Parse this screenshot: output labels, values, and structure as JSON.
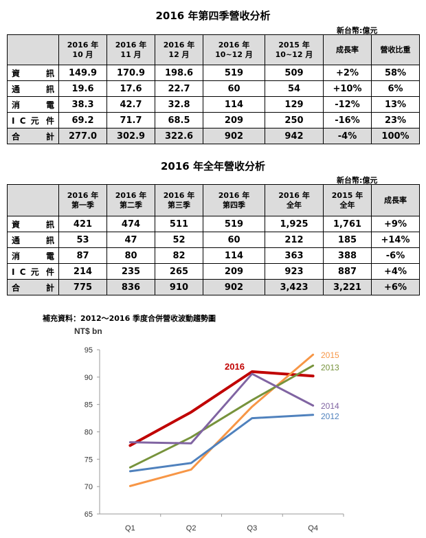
{
  "q4_title": "2016 年第四季營收分析",
  "unit_label": "新台幣:億元",
  "q4_table": {
    "headers": [
      "",
      "2016 年\n10 月",
      "2016 年\n11 月",
      "2016 年\n12 月",
      "2016 年\n10~12 月",
      "2015 年\n10~12 月",
      "成長率",
      "營收比重"
    ],
    "rows": [
      [
        "資 訊",
        "149.9",
        "170.9",
        "198.6",
        "519",
        "509",
        "+2%",
        "58%"
      ],
      [
        "通 訊",
        "19.6",
        "17.6",
        "22.7",
        "60",
        "54",
        "+10%",
        "6%"
      ],
      [
        "消 電",
        "38.3",
        "42.7",
        "32.8",
        "114",
        "129",
        "-12%",
        "13%"
      ],
      [
        "I C 元 件",
        "69.2",
        "71.7",
        "68.5",
        "209",
        "250",
        "-16%",
        "23%"
      ]
    ],
    "total": [
      "合 計",
      "277.0",
      "302.9",
      "322.6",
      "902",
      "942",
      "-4%",
      "100%"
    ]
  },
  "year_title": "2016 年全年營收分析",
  "year_table": {
    "headers": [
      "",
      "2016 年\n第一季",
      "2016 年\n第二季",
      "2016 年\n第三季",
      "2016 年\n第四季",
      "2016 年\n全年",
      "2015 年\n全年",
      "成長率"
    ],
    "rows": [
      [
        "資 訊",
        "421",
        "474",
        "511",
        "519",
        "1,925",
        "1,761",
        "+9%"
      ],
      [
        "通 訊",
        "53",
        "47",
        "52",
        "60",
        "212",
        "185",
        "+14%"
      ],
      [
        "消 電",
        "87",
        "80",
        "82",
        "114",
        "363",
        "388",
        "-6%"
      ],
      [
        "I C 元 件",
        "214",
        "235",
        "265",
        "209",
        "923",
        "887",
        "+4%"
      ]
    ],
    "total": [
      "合 計",
      "775",
      "836",
      "910",
      "902",
      "3,423",
      "3,221",
      "+6%"
    ]
  },
  "note": "補充資料：2012～2016 季度合併營收波動趨勢圖",
  "chart_data": {
    "type": "line",
    "ylabel": "NT$ bn",
    "ylim": [
      65,
      95
    ],
    "yticks": [
      "65",
      "70",
      "75",
      "80",
      "85",
      "90",
      "95"
    ],
    "categories": [
      "Q1",
      "Q2",
      "Q3",
      "Q4"
    ],
    "grid": false,
    "series": [
      {
        "name": "2016",
        "color": "#c00000",
        "values": [
          77.5,
          83.6,
          91.0,
          90.2
        ]
      },
      {
        "name": "2015",
        "color": "#f79646",
        "values": [
          70.1,
          73.1,
          84.6,
          94.1
        ]
      },
      {
        "name": "2013",
        "color": "#77933c",
        "values": [
          73.5,
          79.0,
          85.8,
          92.1
        ]
      },
      {
        "name": "2014",
        "color": "#8064a2",
        "values": [
          78.1,
          77.9,
          90.6,
          84.8
        ]
      },
      {
        "name": "2012",
        "color": "#4f81bd",
        "values": [
          72.8,
          74.3,
          82.5,
          83.1
        ]
      }
    ]
  }
}
